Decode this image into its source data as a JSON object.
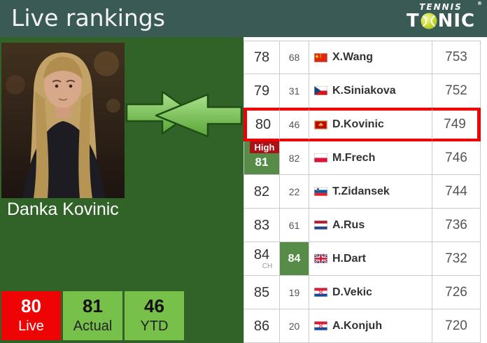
{
  "header": {
    "title": "Live rankings",
    "logo": {
      "line1": "TENNIS",
      "registered": "®",
      "t": "T",
      "nic": "NIC"
    }
  },
  "player": {
    "name": "Danka Kovinic"
  },
  "stats": [
    {
      "value": "80",
      "label": "Live"
    },
    {
      "value": "81",
      "label": "Actual"
    },
    {
      "value": "46",
      "label": "YTD"
    }
  ],
  "table": {
    "rows": [
      {
        "rank": "78",
        "move": "68",
        "flag": "cn",
        "flag_icon": "china-flag-icon",
        "name": "X.Wang",
        "points": "753"
      },
      {
        "rank": "79",
        "move": "31",
        "flag": "cz",
        "flag_icon": "czech-flag-icon",
        "name": "K.Siniakova",
        "points": "752"
      },
      {
        "rank": "80",
        "move": "46",
        "flag": "me",
        "flag_icon": "montenegro-flag-icon",
        "name": "D.Kovinic",
        "points": "749",
        "highlighted": true
      },
      {
        "rank": "81",
        "move": "82",
        "flag": "pl",
        "flag_icon": "poland-flag-icon",
        "name": "M.Frech",
        "points": "746",
        "rank_badge": "High"
      },
      {
        "rank": "82",
        "move": "22",
        "flag": "si",
        "flag_icon": "slovenia-flag-icon",
        "name": "T.Zidansek",
        "points": "744"
      },
      {
        "rank": "83",
        "move": "61",
        "flag": "nl",
        "flag_icon": "netherlands-flag-icon",
        "name": "A.Rus",
        "points": "736"
      },
      {
        "rank": "84",
        "rank_sub": "CH",
        "move": "84",
        "move_highlight": true,
        "flag": "gb",
        "flag_icon": "uk-flag-icon",
        "name": "H.Dart",
        "points": "732"
      },
      {
        "rank": "85",
        "move": "19",
        "flag": "hr",
        "flag_icon": "croatia-flag-icon",
        "name": "D.Vekic",
        "points": "726"
      },
      {
        "rank": "86",
        "move": "20",
        "flag": "hr",
        "flag_icon": "croatia-flag-icon",
        "name": "A.Konjuh",
        "points": "720"
      }
    ]
  },
  "colors": {
    "header_bg": "#3a5a55",
    "page_bg": "#316227",
    "highlight_red": "#ed0000",
    "stat_red": "#ee0404",
    "stat_green": "#77c04a",
    "rank_green": "#568c48",
    "banner_red": "#ab1116",
    "arrow_green": "#6fbd49"
  }
}
